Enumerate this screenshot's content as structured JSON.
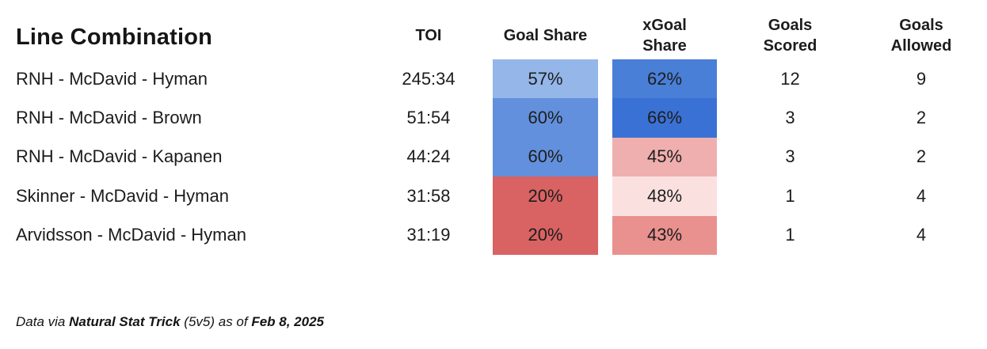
{
  "chart_data": {
    "type": "table",
    "title": "Line Combination",
    "columns": [
      "Line Combination",
      "TOI",
      "Goal Share",
      "xGoal Share",
      "Goals Scored",
      "Goals Allowed"
    ],
    "rows": [
      {
        "line_combination": "RNH - McDavid - Hyman",
        "toi": "245:34",
        "goal_share": "57%",
        "xgoal_share": "62%",
        "goals_scored": "12",
        "goals_allowed": "9",
        "goal_share_bg": "#94b6e9",
        "xgoal_share_bg": "#4a7fd8"
      },
      {
        "line_combination": "RNH - McDavid - Brown",
        "toi": "51:54",
        "goal_share": "60%",
        "xgoal_share": "66%",
        "goals_scored": "3",
        "goals_allowed": "2",
        "goal_share_bg": "#6290dc",
        "xgoal_share_bg": "#3a71d4"
      },
      {
        "line_combination": "RNH - McDavid - Kapanen",
        "toi": "44:24",
        "goal_share": "60%",
        "xgoal_share": "45%",
        "goals_scored": "3",
        "goals_allowed": "2",
        "goal_share_bg": "#6290dc",
        "xgoal_share_bg": "#efafae"
      },
      {
        "line_combination": "Skinner - McDavid - Hyman",
        "toi": "31:58",
        "goal_share": "20%",
        "xgoal_share": "48%",
        "goals_scored": "1",
        "goals_allowed": "4",
        "goal_share_bg": "#d96263",
        "xgoal_share_bg": "#fae1e0"
      },
      {
        "line_combination": "Arvidsson - McDavid - Hyman",
        "toi": "31:19",
        "goal_share": "20%",
        "xgoal_share": "43%",
        "goals_scored": "1",
        "goals_allowed": "4",
        "goal_share_bg": "#d96263",
        "xgoal_share_bg": "#e9918f"
      }
    ],
    "color_scale": {
      "high_blue": "#3a71d4",
      "mid_blue": "#6290dc",
      "light_blue": "#94b6e9",
      "light_pink": "#fae1e0",
      "mid_pink": "#efafae",
      "salmon": "#e9918f",
      "red": "#d96263"
    }
  },
  "headers": {
    "title": "Line Combination",
    "toi": "TOI",
    "goal_share": "Goal Share",
    "xgoal_line1": "xGoal",
    "xgoal_line2": "Share",
    "scored_line1": "Goals",
    "scored_line2": "Scored",
    "allowed_line1": "Goals",
    "allowed_line2": "Allowed"
  },
  "footer": {
    "prefix": "Data via ",
    "source": "Natural Stat Trick",
    "middle": " (5v5) as of ",
    "date": "Feb 8, 2025"
  }
}
